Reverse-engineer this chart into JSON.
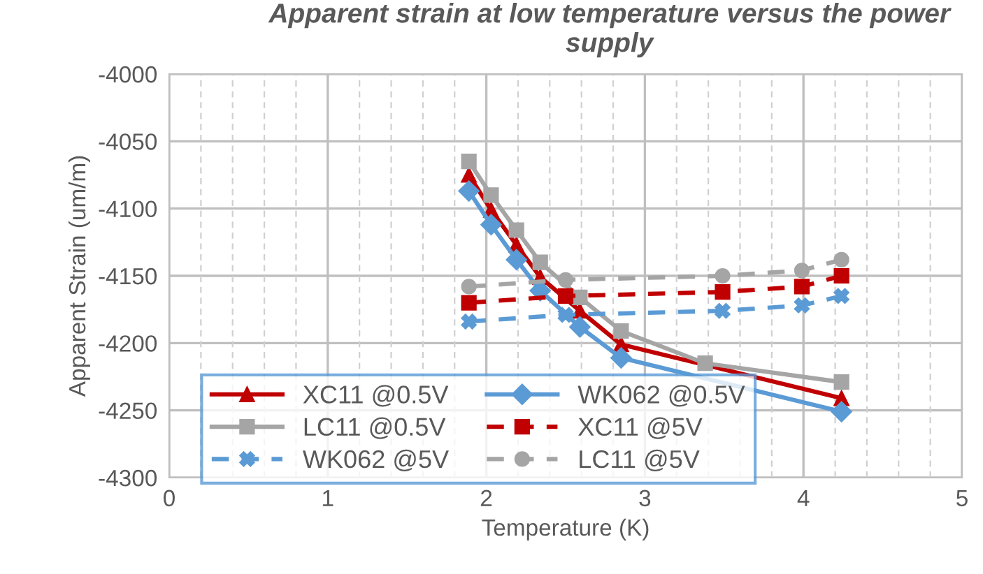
{
  "chart_data": {
    "type": "line",
    "title": "Apparent strain at low temperature versus the power supply",
    "xlabel": "Temperature (K)",
    "ylabel": "Apparent Strain (um/m)",
    "xlim": [
      0,
      5
    ],
    "ylim": [
      -4300,
      -4000
    ],
    "xticks": [
      0,
      {
        "value": 0.2,
        "label": null
      },
      {
        "value": 0.4,
        "label": null
      },
      {
        "value": 0.6,
        "label": null
      },
      {
        "value": 0.8,
        "label": null
      },
      1,
      {
        "value": 1.2,
        "label": null
      },
      {
        "value": 1.4,
        "label": null
      },
      {
        "value": 1.6,
        "label": null
      },
      {
        "value": 1.8,
        "label": null
      },
      2,
      {
        "value": 2.2,
        "label": null
      },
      {
        "value": 2.4,
        "label": null
      },
      {
        "value": 2.6,
        "label": null
      },
      {
        "value": 2.8,
        "label": null
      },
      3,
      {
        "value": 3.2,
        "label": null
      },
      {
        "value": 3.4,
        "label": null
      },
      {
        "value": 3.6,
        "label": null
      },
      {
        "value": 3.8,
        "label": null
      },
      4,
      {
        "value": 4.2,
        "label": null
      },
      {
        "value": 4.4,
        "label": null
      },
      {
        "value": 4.6,
        "label": null
      },
      {
        "value": 4.8,
        "label": null
      },
      5
    ],
    "yticks": [
      -4300,
      -4250,
      -4200,
      -4150,
      -4100,
      -4050,
      -4000
    ],
    "grid": true,
    "legend": "bottom left",
    "series": [
      {
        "name": "XC11 @0.5V",
        "color": "#c00000",
        "marker": "triangle",
        "line_style": "solid",
        "x": [
          1.89,
          2.03,
          2.19,
          2.34,
          2.59,
          2.85,
          3.38,
          4.24
        ],
        "values": [
          -4075,
          -4101,
          -4127,
          -4151,
          -4176,
          -4201,
          null,
          -4241
        ]
      },
      {
        "name": "WK062 @0.5V",
        "color": "#5b9bd5",
        "marker": "diamond",
        "line_style": "solid",
        "x": [
          1.89,
          2.03,
          2.19,
          2.34,
          2.59,
          2.85,
          3.38,
          4.24
        ],
        "values": [
          -4087,
          -4112,
          -4138,
          -4161,
          -4188,
          -4211,
          null,
          -4251
        ]
      },
      {
        "name": "LC11 @0.5V",
        "color": "#a5a5a5",
        "marker": "square",
        "line_style": "solid",
        "x": [
          1.89,
          2.03,
          2.19,
          2.34,
          2.59,
          2.85,
          3.38,
          4.24
        ],
        "values": [
          -4065,
          -4090,
          -4116,
          -4140,
          -4166,
          -4191,
          -4215,
          -4229
        ]
      },
      {
        "name": "XC11 @5V",
        "color": "#c00000",
        "marker": "square",
        "line_style": "dashed",
        "x": [
          1.89,
          2.5,
          3.49,
          3.99,
          4.24
        ],
        "values": [
          -4170,
          -4165,
          -4162,
          -4158,
          -4150
        ]
      },
      {
        "name": "WK062 @5V",
        "color": "#5b9bd5",
        "marker": "cross",
        "line_style": "dashed",
        "x": [
          1.89,
          2.5,
          3.49,
          3.99,
          4.24
        ],
        "values": [
          -4184,
          -4179,
          -4176,
          -4172,
          -4165
        ]
      },
      {
        "name": "LC11 @5V",
        "color": "#a5a5a5",
        "marker": "circle",
        "line_style": "dashed",
        "x": [
          1.89,
          2.5,
          3.49,
          3.99,
          4.24
        ],
        "values": [
          -4158,
          -4153,
          -4150,
          -4146,
          -4138
        ]
      }
    ]
  }
}
